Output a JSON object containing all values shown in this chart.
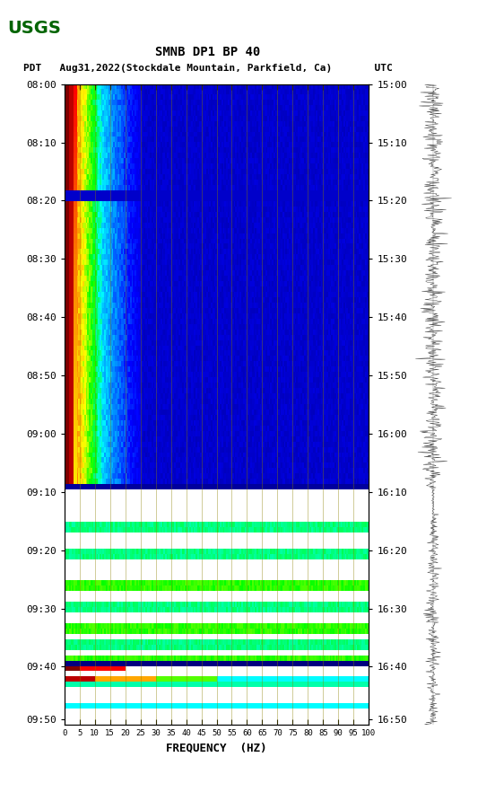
{
  "title_line1": "SMNB DP1 BP 40",
  "title_line2": "PDT   Aug31,2022(Stockdale Mountain, Parkfield, Ca)       UTC",
  "xlabel": "FREQUENCY  (HZ)",
  "freq_ticks": [
    0,
    5,
    10,
    15,
    20,
    25,
    30,
    35,
    40,
    45,
    50,
    55,
    60,
    65,
    70,
    75,
    80,
    85,
    90,
    95,
    100
  ],
  "left_time_labels": [
    "08:00",
    "08:10",
    "08:20",
    "08:30",
    "08:40",
    "08:50",
    "09:00",
    "09:10",
    "09:20",
    "09:30",
    "09:40",
    "09:50"
  ],
  "right_time_labels": [
    "15:00",
    "15:10",
    "15:20",
    "15:30",
    "15:40",
    "15:50",
    "16:00",
    "16:10",
    "16:20",
    "16:30",
    "16:40",
    "16:50"
  ],
  "bg_color": "#ffffff",
  "spectrogram_bg": "#000080",
  "n_freq": 200,
  "n_time": 120,
  "font_size_title": 10,
  "font_size_axis": 9,
  "font_size_ticks": 8
}
